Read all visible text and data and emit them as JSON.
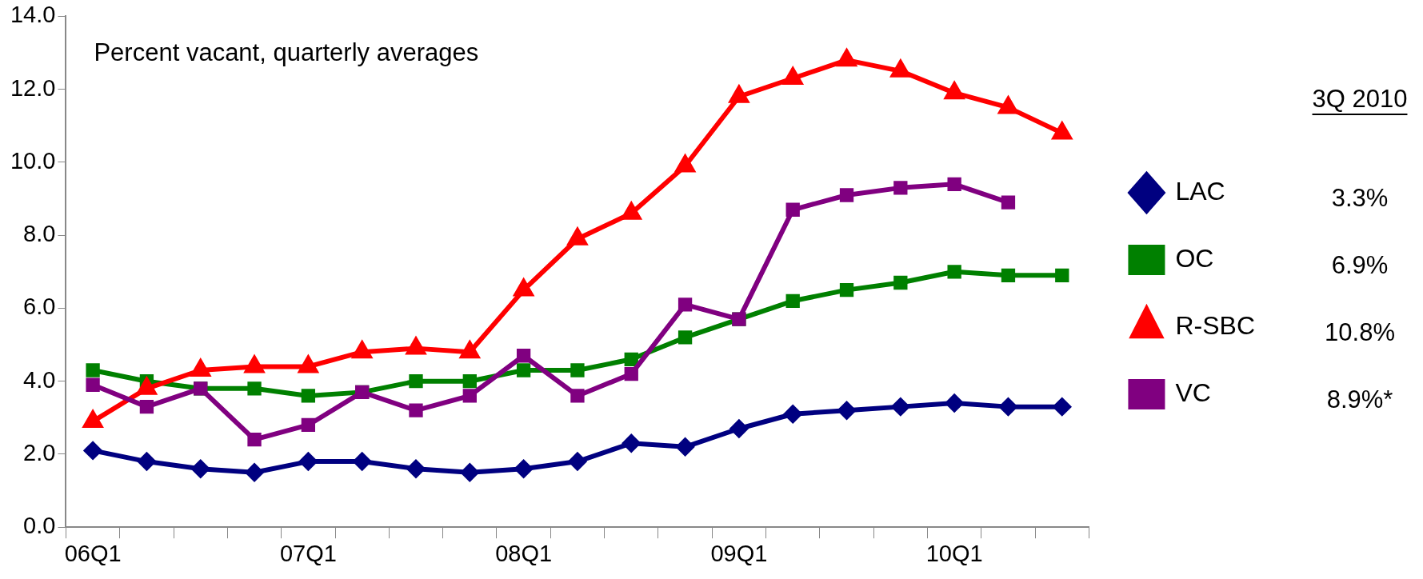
{
  "chart_data": {
    "type": "line",
    "title": "Percent vacant, quarterly averages",
    "categories": [
      "06Q1",
      null,
      null,
      null,
      "07Q1",
      null,
      null,
      null,
      "08Q1",
      null,
      null,
      null,
      "09Q1",
      null,
      null,
      null,
      "10Q1",
      null,
      null
    ],
    "series": [
      {
        "name": "LAC",
        "color": "#000080",
        "marker": "diamond",
        "values": [
          2.1,
          1.8,
          1.6,
          1.5,
          1.8,
          1.8,
          1.6,
          1.5,
          1.6,
          1.8,
          2.3,
          2.2,
          2.7,
          3.1,
          3.2,
          3.3,
          3.4,
          3.3,
          3.3
        ]
      },
      {
        "name": "OC",
        "color": "#008000",
        "marker": "square",
        "values": [
          4.3,
          4.0,
          3.8,
          3.8,
          3.6,
          3.7,
          4.0,
          4.0,
          4.3,
          4.3,
          4.6,
          5.2,
          5.7,
          6.2,
          6.5,
          6.7,
          7.0,
          6.9,
          6.9
        ]
      },
      {
        "name": "R-SBC",
        "color": "#ff0000",
        "marker": "triangle",
        "values": [
          2.9,
          3.8,
          4.3,
          4.4,
          4.4,
          4.8,
          4.9,
          4.8,
          6.5,
          7.9,
          8.6,
          9.9,
          11.8,
          12.3,
          12.8,
          12.5,
          11.9,
          11.5,
          10.8
        ]
      },
      {
        "name": "VC",
        "color": "#800080",
        "marker": "square",
        "values": [
          3.9,
          3.3,
          3.8,
          2.4,
          2.8,
          3.7,
          3.2,
          3.6,
          4.7,
          3.6,
          4.2,
          6.1,
          5.7,
          8.7,
          9.1,
          9.3,
          9.4,
          8.9,
          null
        ]
      }
    ],
    "ylim": [
      0,
      14
    ],
    "yticks": [
      {
        "value": 0,
        "label": "0.0"
      },
      {
        "value": 2,
        "label": "2.0"
      },
      {
        "value": 4,
        "label": "4.0"
      },
      {
        "value": 6,
        "label": "6.0"
      },
      {
        "value": 8,
        "label": "8.0"
      },
      {
        "value": 10,
        "label": "10.0"
      },
      {
        "value": 12,
        "label": "12.0"
      },
      {
        "value": 14,
        "label": "14.0"
      }
    ],
    "grid": false,
    "legend": "right",
    "line_style": "solid",
    "annotations": [
      "3Q 2010",
      "3.3%",
      "6.9%",
      "10.8%",
      "8.9%*"
    ]
  }
}
